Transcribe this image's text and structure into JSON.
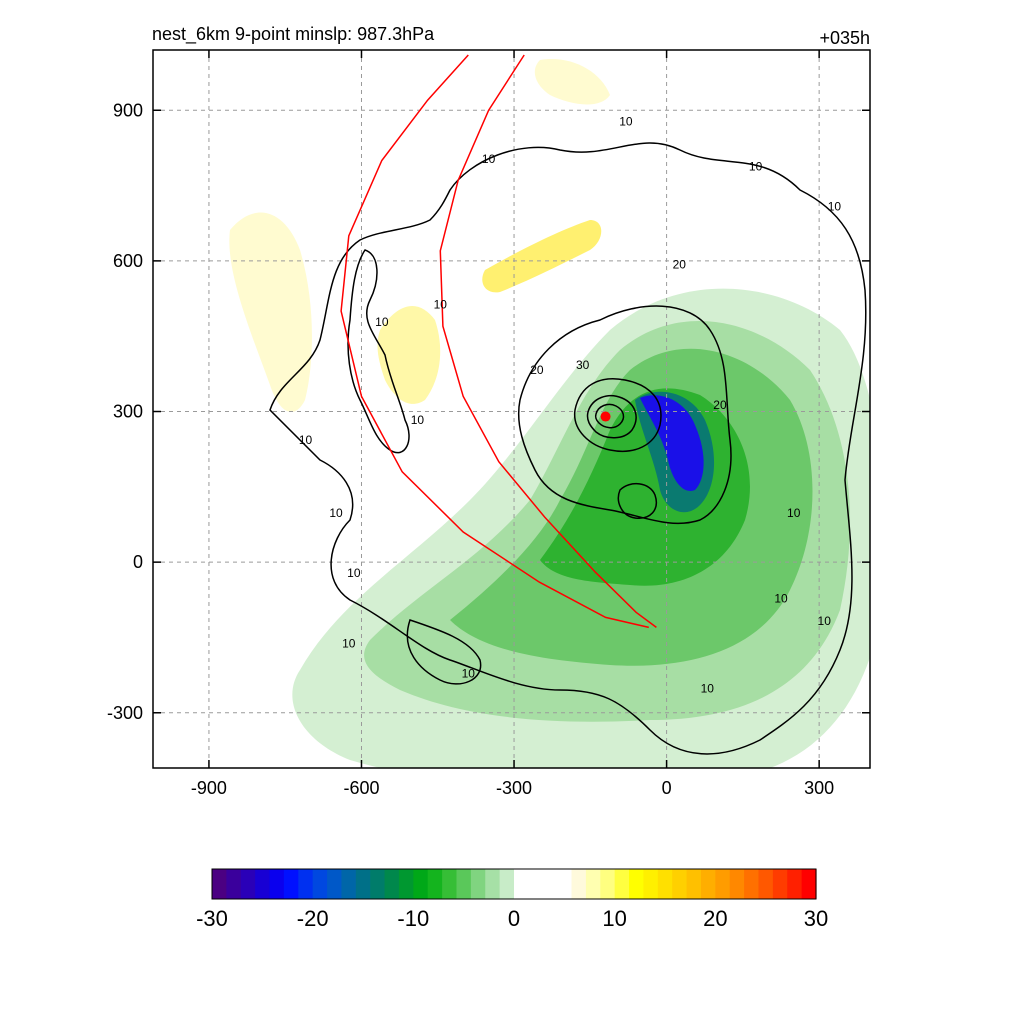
{
  "chart_data": {
    "type": "heatmap",
    "title_left": "nest_6km  9-point minslp: 987.3hPa",
    "title_right": "+035h",
    "xlabel": "",
    "ylabel": "",
    "xlim": [
      -1010,
      400
    ],
    "ylim": [
      -410,
      1020
    ],
    "x_ticks": [
      -900,
      -600,
      -300,
      0,
      300
    ],
    "y_ticks": [
      900,
      600,
      300,
      0,
      -300
    ],
    "grid": true,
    "center": {
      "x": -120,
      "y": 290
    },
    "contour_labels": [
      {
        "text": "10",
        "x": -80,
        "y": 870
      },
      {
        "text": "10",
        "x": -350,
        "y": 795
      },
      {
        "text": "10",
        "x": 175,
        "y": 780
      },
      {
        "text": "10",
        "x": 330,
        "y": 700
      },
      {
        "text": "20",
        "x": 25,
        "y": 585
      },
      {
        "text": "10",
        "x": -560,
        "y": 470
      },
      {
        "text": "10",
        "x": -445,
        "y": 505
      },
      {
        "text": "20",
        "x": -255,
        "y": 375
      },
      {
        "text": "30",
        "x": -165,
        "y": 385
      },
      {
        "text": "20",
        "x": 105,
        "y": 305
      },
      {
        "text": "10",
        "x": -490,
        "y": 275
      },
      {
        "text": "10",
        "x": -710,
        "y": 235
      },
      {
        "text": "10",
        "x": -650,
        "y": 90
      },
      {
        "text": "10",
        "x": -615,
        "y": -30
      },
      {
        "text": "10",
        "x": 250,
        "y": 90
      },
      {
        "text": "10",
        "x": 225,
        "y": -80
      },
      {
        "text": "10",
        "x": 310,
        "y": -125
      },
      {
        "text": "10",
        "x": -625,
        "y": -170
      },
      {
        "text": "10",
        "x": -390,
        "y": -230
      },
      {
        "text": "10",
        "x": 80,
        "y": -260
      }
    ],
    "track_outer": [
      [
        -390,
        1010
      ],
      [
        -470,
        920
      ],
      [
        -560,
        800
      ],
      [
        -625,
        650
      ],
      [
        -640,
        500
      ],
      [
        -600,
        330
      ],
      [
        -520,
        180
      ],
      [
        -400,
        60
      ],
      [
        -250,
        -40
      ],
      [
        -120,
        -110
      ],
      [
        -35,
        -130
      ]
    ],
    "track_inner": [
      [
        -280,
        1010
      ],
      [
        -350,
        900
      ],
      [
        -410,
        760
      ],
      [
        -445,
        620
      ],
      [
        -440,
        470
      ],
      [
        -400,
        330
      ],
      [
        -330,
        200
      ],
      [
        -240,
        90
      ],
      [
        -140,
        -20
      ],
      [
        -60,
        -100
      ],
      [
        -20,
        -130
      ]
    ],
    "colorbar": {
      "min": -30,
      "max": 30,
      "tick_labels": [
        "-30",
        "-20",
        "-10",
        "0",
        "10",
        "20",
        "30"
      ],
      "colors": [
        "#4b0082",
        "#3a009c",
        "#2a00b8",
        "#1800d4",
        "#0a00ee",
        "#0010ff",
        "#0030f0",
        "#0048e0",
        "#0058c8",
        "#0066a8",
        "#007088",
        "#007c6a",
        "#00884c",
        "#009830",
        "#00a818",
        "#14b41e",
        "#36be36",
        "#5ac85a",
        "#80d480",
        "#a6e0a6",
        "#c8ecc8",
        "#ffffff",
        "#ffffff",
        "#ffffff",
        "#ffffff",
        "#fffadc",
        "#ffffb0",
        "#ffff80",
        "#ffff40",
        "#ffff00",
        "#fff000",
        "#ffe000",
        "#ffd000",
        "#ffc000",
        "#ffae00",
        "#ff9c00",
        "#ff8800",
        "#ff7000",
        "#ff5800",
        "#ff3c00",
        "#ff2000",
        "#ff0000"
      ]
    }
  }
}
